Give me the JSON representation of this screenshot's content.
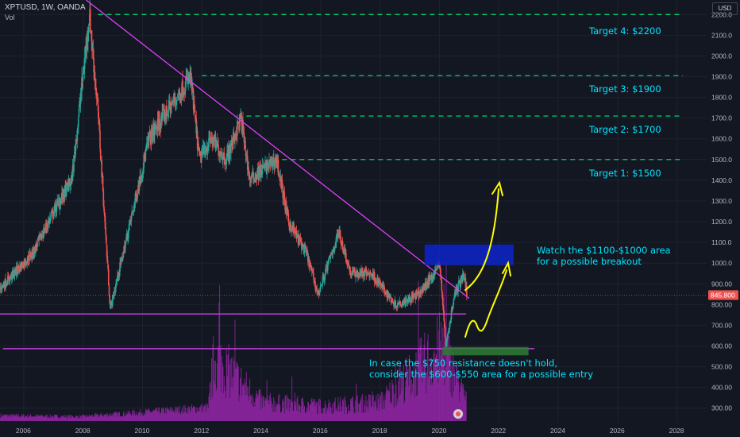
{
  "header": {
    "symbol": "XPTUSD, 1W, OANDA",
    "volume_label": "Vol"
  },
  "currency_badge": "USD",
  "price_badge": "845.800",
  "annotations": {
    "target4": "Target 4: $2200",
    "target3": "Target 3: $1900",
    "target2": "Target 2: $1700",
    "target1": "Target 1: $1500",
    "breakout_line1": "Watch the $1100-$1000 area",
    "breakout_line2": "for a possible breakout",
    "entry_line1": "In case the $750 resistance doesn't hold,",
    "entry_line2": "consider the $600-$550 area for a possible entry"
  },
  "colors": {
    "background": "#131722",
    "up_candle": "#26a69a",
    "down_candle": "#ef5350",
    "volume": "#9c27b0",
    "trendline": "#e040fb",
    "target_line": "#00e676",
    "annotation_text": "#00e5ff",
    "arrow": "#ffff00",
    "breakout_zone": "#0d25c9",
    "entry_zone": "#2e7d32"
  },
  "chart_data": {
    "type": "candlestick",
    "y_ticks": [
      300,
      400,
      500,
      600,
      700,
      800,
      900,
      1000,
      1100,
      1200,
      1300,
      1400,
      1500,
      1600,
      1700,
      1800,
      1900,
      2000,
      2100,
      2200
    ],
    "x_ticks": [
      2006,
      2008,
      2010,
      2012,
      2014,
      2016,
      2018,
      2020,
      2022,
      2024,
      2026,
      2028
    ],
    "ylim": [
      230,
      2270
    ],
    "xlim": [
      2005.2,
      2029.0
    ],
    "last_price": 845.8,
    "series": [
      {
        "name": "XPTUSD",
        "points": [
          [
            2005.2,
            880
          ],
          [
            2006.3,
            1050
          ],
          [
            2007.0,
            1250
          ],
          [
            2007.6,
            1400
          ],
          [
            2008.2,
            2200
          ],
          [
            2008.5,
            1700
          ],
          [
            2008.9,
            780
          ],
          [
            2009.5,
            1150
          ],
          [
            2010.2,
            1600
          ],
          [
            2010.9,
            1750
          ],
          [
            2011.6,
            1900
          ],
          [
            2011.9,
            1500
          ],
          [
            2012.3,
            1600
          ],
          [
            2012.8,
            1500
          ],
          [
            2013.3,
            1700
          ],
          [
            2013.6,
            1400
          ],
          [
            2014.0,
            1450
          ],
          [
            2014.5,
            1500
          ],
          [
            2014.9,
            1200
          ],
          [
            2015.5,
            1050
          ],
          [
            2015.9,
            850
          ],
          [
            2016.6,
            1150
          ],
          [
            2017.0,
            950
          ],
          [
            2017.7,
            950
          ],
          [
            2018.5,
            800
          ],
          [
            2019.3,
            850
          ],
          [
            2019.8,
            950
          ],
          [
            2020.0,
            1000
          ],
          [
            2020.2,
            600
          ],
          [
            2020.5,
            850
          ],
          [
            2020.8,
            950
          ],
          [
            2020.9,
            860
          ]
        ]
      }
    ],
    "volume": [
      [
        2005.2,
        25
      ],
      [
        2007.9,
        20
      ],
      [
        2012.2,
        60
      ],
      [
        2012.4,
        300
      ],
      [
        2014.0,
        90
      ],
      [
        2016.0,
        70
      ],
      [
        2018.0,
        90
      ],
      [
        2020.1,
        350
      ],
      [
        2020.8,
        120
      ]
    ],
    "resistance_trendline": [
      [
        2008.1,
        2270
      ],
      [
        2021.0,
        830
      ]
    ],
    "support_lines": [
      {
        "price": 755,
        "from": 2005.2,
        "to": 2020.9
      },
      {
        "price": 587,
        "from": 2005.3,
        "to": 2023.2
      }
    ],
    "target_levels": [
      {
        "price": 2200,
        "from": 2008.5
      },
      {
        "price": 1905,
        "from": 2012.0
      },
      {
        "price": 1710,
        "from": 2013.5
      },
      {
        "price": 1500,
        "from": 2014.7
      }
    ],
    "zones": [
      {
        "name": "breakout",
        "from": 2019.5,
        "to": 2022.5,
        "low": 990,
        "high": 1090
      },
      {
        "name": "entry",
        "from": 2020.1,
        "to": 2023.0,
        "low": 555,
        "high": 595
      }
    ]
  }
}
